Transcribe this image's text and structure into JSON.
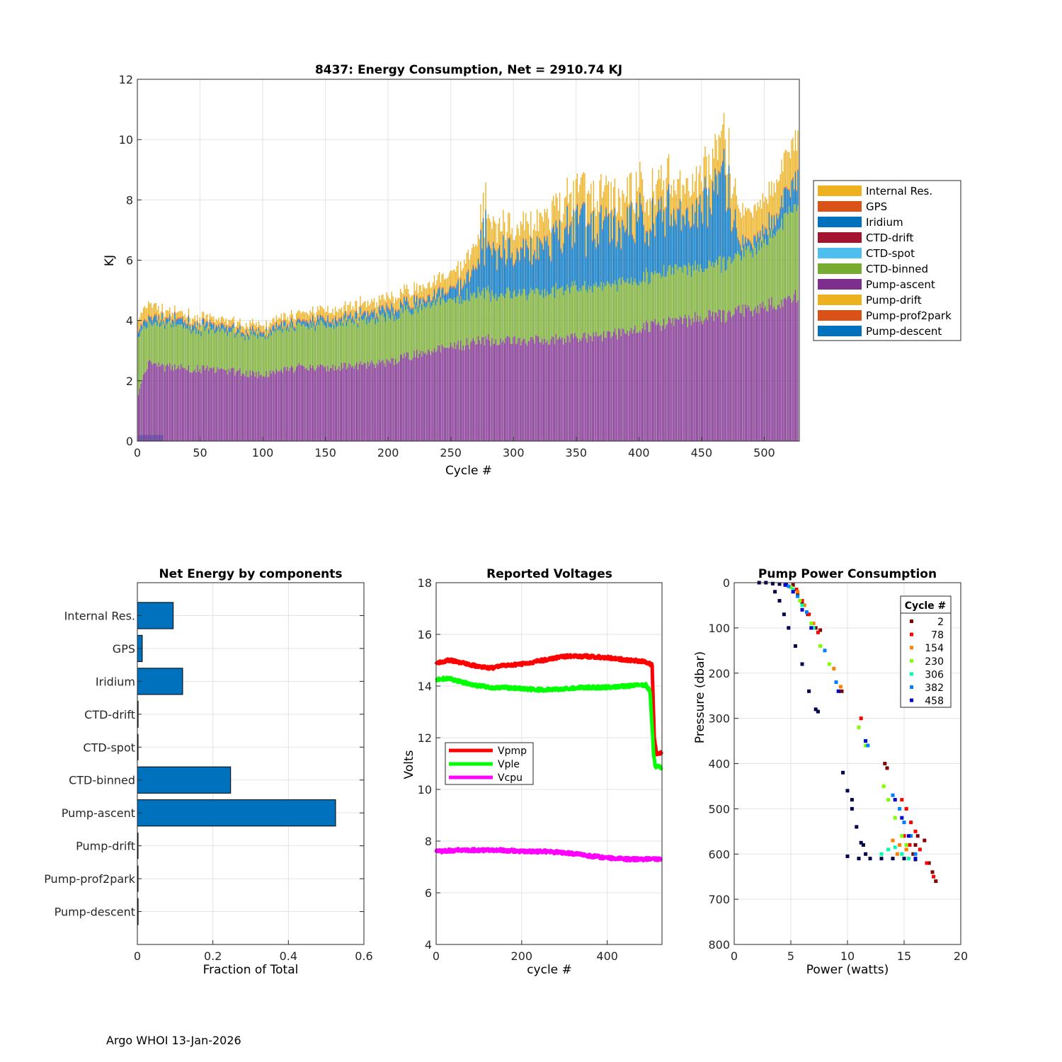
{
  "footer": "Argo WHOI 13-Jan-2026",
  "colors": {
    "internal_res": "#EDB120",
    "gps": "#D95319",
    "iridium": "#0072BD",
    "ctd_drift": "#A2142F",
    "ctd_spot": "#4DBEEE",
    "ctd_binned": "#77AC30",
    "pump_ascent": "#7E2F8E",
    "pump_drift": "#EDB120",
    "pump_prof2park": "#D95319",
    "pump_descent": "#0072BD",
    "grid": "#e3e3e3",
    "axis": "#262626",
    "vpmp": "#FF0000",
    "vple": "#00FF00",
    "vcpu": "#FF00FF"
  },
  "chart_data": [
    {
      "type": "bar",
      "stacked": true,
      "title": "8437: Energy Consumption,  Net = 2910.74 KJ",
      "xlabel": "Cycle #",
      "ylabel": "KJ",
      "xlim": [
        0,
        528
      ],
      "ylim": [
        0,
        12
      ],
      "xticks": [
        0,
        50,
        100,
        150,
        200,
        250,
        300,
        350,
        400,
        450,
        500
      ],
      "yticks": [
        0,
        2,
        4,
        6,
        8,
        10,
        12
      ],
      "grid": true,
      "legend_position": "outside-right",
      "legend": [
        "Internal Res.",
        "GPS",
        "Iridium",
        "CTD-drift",
        "CTD-spot",
        "CTD-binned",
        "Pump-ascent",
        "Pump-drift",
        "Pump-prof2park",
        "Pump-descent"
      ],
      "cycle_anchors": [
        0,
        10,
        20,
        30,
        50,
        60,
        80,
        100,
        130,
        160,
        200,
        230,
        250,
        260,
        280,
        300,
        330,
        350,
        380,
        400,
        430,
        450,
        470,
        480,
        500,
        527
      ],
      "series": [
        {
          "name": "Pump-ascent",
          "values": [
            1.5,
            2.7,
            2.45,
            2.45,
            2.4,
            2.35,
            2.3,
            2.2,
            2.45,
            2.45,
            2.6,
            3.0,
            3.1,
            3.2,
            3.35,
            3.3,
            3.35,
            3.45,
            3.55,
            3.75,
            3.95,
            4.1,
            4.15,
            4.3,
            4.5,
            4.8
          ]
        },
        {
          "name": "CTD-binned",
          "values": [
            1.9,
            1.25,
            1.4,
            1.4,
            1.3,
            1.3,
            1.25,
            1.3,
            1.35,
            1.45,
            1.5,
            1.55,
            1.55,
            1.55,
            1.55,
            1.55,
            1.6,
            1.65,
            1.65,
            1.65,
            1.7,
            1.7,
            1.7,
            1.8,
            2.15,
            3.1
          ]
        },
        {
          "name": "Iridium",
          "values": [
            0.15,
            0.2,
            0.15,
            0.15,
            0.15,
            0.15,
            0.1,
            0.1,
            0.15,
            0.15,
            0.2,
            0.2,
            0.3,
            0.45,
            2.0,
            1.2,
            1.4,
            2.0,
            1.8,
            2.1,
            1.8,
            2.0,
            2.6,
            0.3,
            0.3,
            0.9
          ]
        },
        {
          "name": "Internal Res.",
          "values": [
            0.35,
            0.45,
            0.25,
            0.2,
            0.2,
            0.2,
            0.2,
            0.2,
            0.25,
            0.3,
            0.35,
            0.4,
            0.5,
            0.6,
            0.9,
            0.8,
            0.9,
            1.0,
            1.0,
            1.0,
            1.0,
            1.0,
            1.2,
            1.0,
            1.0,
            1.3
          ]
        },
        {
          "name": "GPS",
          "values": [
            0.05,
            0.05,
            0.05,
            0.05,
            0.05,
            0.05,
            0.05,
            0.05,
            0.05,
            0.05,
            0.05,
            0.05,
            0.05,
            0.05,
            0.05,
            0.05,
            0.05,
            0.05,
            0.05,
            0.05,
            0.05,
            0.05,
            0.05,
            0.05,
            0.05,
            0.05
          ]
        },
        {
          "name": "Pump-descent",
          "note": "first cycles only",
          "values": [
            0.2,
            0.2,
            0,
            0,
            0,
            0,
            0,
            0,
            0,
            0,
            0,
            0,
            0,
            0,
            0,
            0,
            0,
            0,
            0,
            0,
            0,
            0,
            0,
            0,
            0,
            0
          ]
        }
      ]
    },
    {
      "type": "barh",
      "title": "Net Energy by components",
      "xlabel": "Fraction of Total",
      "ylabel": "",
      "xlim": [
        0,
        0.6
      ],
      "xticks": [
        0,
        0.2,
        0.4,
        0.6
      ],
      "xtick_labels": [
        "0",
        "0.2",
        "0.4",
        "0.6"
      ],
      "grid": true,
      "categories": [
        "Internal Res.",
        "GPS",
        "Iridium",
        "CTD-drift",
        "CTD-spot",
        "CTD-binned",
        "Pump-ascent",
        "Pump-drift",
        "Pump-prof2park",
        "Pump-descent"
      ],
      "values": [
        0.095,
        0.013,
        0.12,
        0.002,
        0.0,
        0.247,
        0.525,
        0.0,
        0.0,
        0.002
      ]
    },
    {
      "type": "line",
      "title": "Reported Voltages",
      "xlabel": "cycle #",
      "ylabel": "Volts",
      "xlim": [
        0,
        528
      ],
      "ylim": [
        4,
        18
      ],
      "xticks": [
        0,
        200,
        400
      ],
      "yticks": [
        4,
        6,
        8,
        10,
        12,
        14,
        16,
        18
      ],
      "grid": true,
      "legend_position": "center-left",
      "series": [
        {
          "name": "Vpmp",
          "x": [
            0,
            30,
            60,
            100,
            130,
            160,
            200,
            250,
            300,
            350,
            400,
            450,
            490,
            505,
            510,
            515,
            528
          ],
          "y": [
            14.9,
            15.0,
            14.9,
            14.75,
            14.7,
            14.8,
            14.85,
            15.0,
            15.15,
            15.15,
            15.1,
            15.0,
            14.95,
            14.8,
            12.0,
            11.4,
            11.4
          ]
        },
        {
          "name": "Vple",
          "x": [
            0,
            30,
            60,
            100,
            130,
            160,
            200,
            250,
            300,
            350,
            400,
            450,
            490,
            500,
            508,
            512,
            528
          ],
          "y": [
            14.25,
            14.3,
            14.15,
            14.0,
            13.95,
            13.95,
            13.9,
            13.85,
            13.9,
            13.95,
            13.95,
            14.0,
            14.05,
            13.8,
            11.5,
            10.9,
            10.85
          ]
        },
        {
          "name": "Vcpu",
          "x": [
            0,
            50,
            100,
            150,
            200,
            250,
            300,
            350,
            400,
            450,
            500,
            528
          ],
          "y": [
            7.6,
            7.65,
            7.65,
            7.65,
            7.6,
            7.6,
            7.55,
            7.45,
            7.35,
            7.3,
            7.3,
            7.3
          ]
        }
      ]
    },
    {
      "type": "scatter",
      "title": "Pump Power Consumption",
      "xlabel": "Power (watts)",
      "ylabel": "Pressure (dbar)",
      "xlim": [
        0,
        20
      ],
      "ylim": [
        0,
        800
      ],
      "y_reversed": true,
      "xticks": [
        0,
        5,
        10,
        15,
        20
      ],
      "yticks": [
        0,
        100,
        200,
        300,
        400,
        500,
        600,
        700,
        800
      ],
      "grid": true,
      "legend_title": "Cycle #",
      "legend_position": "top-right",
      "series": [
        {
          "name": "2",
          "color": "#800000",
          "points": [
            [
              5.2,
              5
            ],
            [
              5.6,
              25
            ],
            [
              6.0,
              45
            ],
            [
              6.5,
              70
            ],
            [
              7.2,
              100
            ],
            [
              7.6,
              105
            ],
            [
              9.5,
              240
            ],
            [
              13.3,
              400
            ],
            [
              13.5,
              410
            ],
            [
              16.2,
              560
            ],
            [
              16.8,
              570
            ],
            [
              17.2,
              620
            ],
            [
              17.5,
              640
            ],
            [
              17.8,
              660
            ],
            [
              16.0,
              580
            ],
            [
              15.8,
              600
            ]
          ]
        },
        {
          "name": "78",
          "color": "#FF0000",
          "points": [
            [
              5.5,
              15
            ],
            [
              6.0,
              40
            ],
            [
              6.6,
              70
            ],
            [
              7.4,
              110
            ],
            [
              11.2,
              300
            ],
            [
              14.8,
              480
            ],
            [
              15.2,
              500
            ],
            [
              15.6,
              530
            ],
            [
              16.0,
              550
            ],
            [
              16.4,
              590
            ],
            [
              17.0,
              620
            ],
            [
              17.6,
              650
            ],
            [
              15.0,
              560
            ],
            [
              15.5,
              580
            ]
          ]
        },
        {
          "name": "154",
          "color": "#FF8000",
          "points": [
            [
              5.6,
              20
            ],
            [
              6.2,
              50
            ],
            [
              7.0,
              90
            ],
            [
              8.8,
              190
            ],
            [
              9.4,
              230
            ],
            [
              14.0,
              570
            ],
            [
              14.6,
              580
            ],
            [
              15.2,
              590
            ],
            [
              14.4,
              600
            ]
          ]
        },
        {
          "name": "230",
          "color": "#80FF00",
          "points": [
            [
              5.0,
              10
            ],
            [
              5.8,
              40
            ],
            [
              6.8,
              90
            ],
            [
              7.6,
              140
            ],
            [
              8.4,
              180
            ],
            [
              11.0,
              320
            ],
            [
              11.6,
              360
            ],
            [
              13.2,
              450
            ],
            [
              13.6,
              480
            ],
            [
              14.2,
              520
            ],
            [
              14.8,
              560
            ],
            [
              15.2,
              580
            ]
          ]
        },
        {
          "name": "306",
          "color": "#00FFAA",
          "points": [
            [
              5.2,
              15
            ],
            [
              6.0,
              50
            ],
            [
              7.0,
              100
            ],
            [
              13.0,
              600
            ],
            [
              13.6,
              590
            ],
            [
              14.2,
              585
            ],
            [
              14.8,
              600
            ],
            [
              15.4,
              610
            ]
          ]
        },
        {
          "name": "382",
          "color": "#0080FF",
          "points": [
            [
              4.8,
              8
            ],
            [
              5.6,
              30
            ],
            [
              6.4,
              65
            ],
            [
              8.0,
              150
            ],
            [
              9.0,
              220
            ],
            [
              11.8,
              360
            ],
            [
              14.0,
              470
            ],
            [
              14.6,
              500
            ],
            [
              15.0,
              530
            ],
            [
              15.6,
              560
            ],
            [
              16.0,
              600
            ]
          ]
        },
        {
          "name": "458",
          "color": "#0000CC",
          "points": [
            [
              4.5,
              5
            ],
            [
              5.2,
              20
            ],
            [
              6.0,
              60
            ],
            [
              6.8,
              100
            ],
            [
              9.2,
              240
            ],
            [
              11.6,
              350
            ],
            [
              14.2,
              480
            ],
            [
              14.8,
              520
            ],
            [
              15.4,
              560
            ],
            [
              16.0,
              610
            ]
          ]
        },
        {
          "name": "early",
          "color": "#00004C",
          "legend": false,
          "points": [
            [
              2.2,
              0
            ],
            [
              2.8,
              0
            ],
            [
              3.4,
              2
            ],
            [
              4.0,
              3
            ],
            [
              4.6,
              5
            ],
            [
              3.6,
              20
            ],
            [
              4.0,
              40
            ],
            [
              4.4,
              70
            ],
            [
              4.8,
              100
            ],
            [
              5.4,
              140
            ],
            [
              6.0,
              180
            ],
            [
              6.6,
              240
            ],
            [
              7.2,
              280
            ],
            [
              7.4,
              285
            ],
            [
              9.6,
              420
            ],
            [
              10.0,
              460
            ],
            [
              10.4,
              500
            ],
            [
              10.8,
              540
            ],
            [
              11.2,
              575
            ],
            [
              11.6,
              600
            ],
            [
              10.0,
              605
            ],
            [
              11.0,
              610
            ],
            [
              12.0,
              610
            ],
            [
              13.0,
              610
            ],
            [
              14.0,
              610
            ],
            [
              15.0,
              610
            ],
            [
              16.0,
              612
            ],
            [
              10.4,
              480
            ],
            [
              11.4,
              580
            ]
          ]
        }
      ]
    }
  ]
}
